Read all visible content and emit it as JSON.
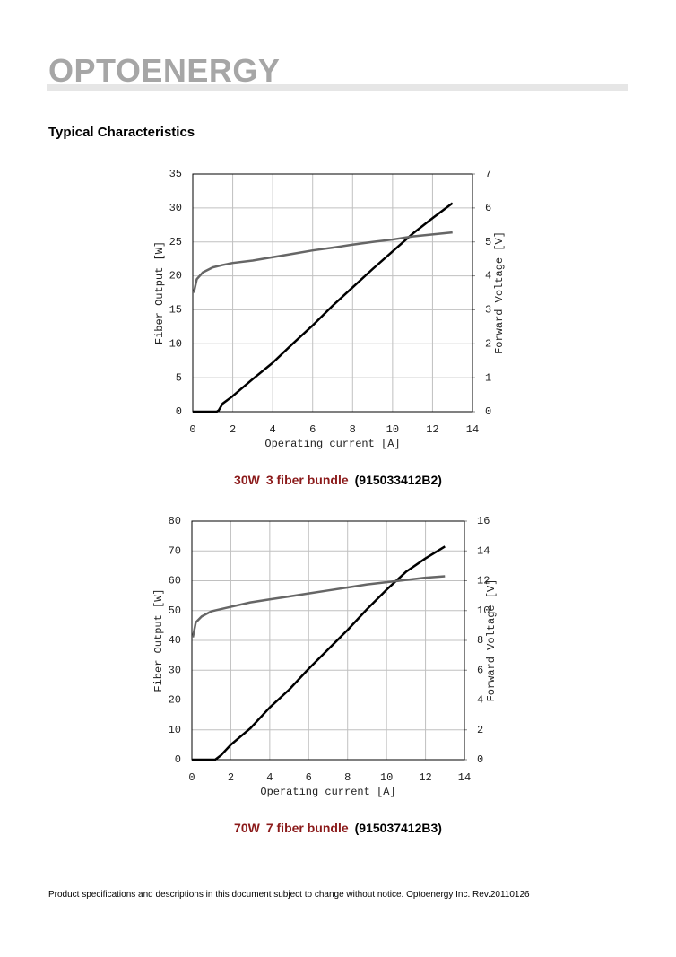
{
  "header": {
    "logo": "OPTOENERGY"
  },
  "section_title": "Typical Characteristics",
  "chart_data": [
    {
      "type": "line",
      "y_label": "Fiber Output [W]",
      "y2_label": "Forward Voltage [V]",
      "x_label": "Operating current [A]",
      "xlim": [
        0,
        14
      ],
      "xticks": [
        0,
        2,
        4,
        6,
        8,
        10,
        12,
        14
      ],
      "ylim": [
        0,
        35
      ],
      "yticks": [
        0,
        5,
        10,
        15,
        20,
        25,
        30,
        35
      ],
      "y2lim": [
        0,
        7
      ],
      "y2ticks": [
        0,
        1,
        2,
        3,
        4,
        5,
        6,
        7
      ],
      "grid": true,
      "series": [
        {
          "color": "#000000",
          "x": [
            0,
            1,
            1.2,
            1.3,
            1.5,
            2,
            3,
            4,
            5,
            6,
            7,
            8,
            9,
            10,
            11,
            12,
            13
          ],
          "values": [
            0,
            0,
            0,
            0.2,
            1.2,
            2.3,
            4.8,
            7.2,
            10,
            12.7,
            15.6,
            18.3,
            21,
            23.6,
            26.2,
            28.5,
            30.7
          ]
        },
        {
          "color": "#666666",
          "axis": "y2",
          "x": [
            0.05,
            0.2,
            0.5,
            1,
            1.5,
            2,
            3,
            4,
            5,
            6,
            7,
            8,
            9,
            10,
            11,
            12,
            13
          ],
          "values": [
            3.5,
            3.9,
            4.1,
            4.25,
            4.32,
            4.38,
            4.45,
            4.55,
            4.65,
            4.75,
            4.83,
            4.92,
            5.0,
            5.07,
            5.16,
            5.22,
            5.28
          ]
        }
      ],
      "caption": [
        "30W",
        "3 fiber bundle",
        "(915033412B2)"
      ]
    },
    {
      "type": "line",
      "y_label": "Fiber Output [W]",
      "y2_label": "Forward Voltage [V]",
      "x_label": "Operating current [A]",
      "xlim": [
        0,
        14
      ],
      "xticks": [
        0,
        2,
        4,
        6,
        8,
        10,
        12,
        14
      ],
      "ylim": [
        0,
        80
      ],
      "yticks": [
        0,
        10,
        20,
        30,
        40,
        50,
        60,
        70,
        80
      ],
      "y2lim": [
        0,
        16
      ],
      "y2ticks": [
        0,
        2,
        4,
        6,
        8,
        10,
        12,
        14,
        16
      ],
      "grid": true,
      "series": [
        {
          "color": "#000000",
          "x": [
            0,
            1,
            1.2,
            1.5,
            2,
            3,
            4,
            5,
            6,
            7,
            8,
            9,
            10,
            11,
            12,
            13
          ],
          "values": [
            0,
            0,
            0,
            1.5,
            5,
            10.5,
            17.5,
            23.5,
            30.5,
            37,
            43.5,
            50.5,
            57,
            63,
            67.5,
            71.5
          ]
        },
        {
          "color": "#666666",
          "axis": "y2",
          "x": [
            0.05,
            0.2,
            0.5,
            1,
            2,
            3,
            4,
            5,
            6,
            7,
            8,
            9,
            10,
            11,
            12,
            13
          ],
          "values": [
            8.2,
            9.2,
            9.6,
            9.95,
            10.25,
            10.55,
            10.75,
            10.95,
            11.15,
            11.35,
            11.55,
            11.75,
            11.9,
            12.05,
            12.2,
            12.3
          ]
        }
      ],
      "caption": [
        "70W",
        "7 fiber bundle",
        "(915037412B3)"
      ]
    }
  ],
  "footer": "Product specifications and descriptions in this document subject to change without notice. Optoenergy Inc. Rev.20110126"
}
